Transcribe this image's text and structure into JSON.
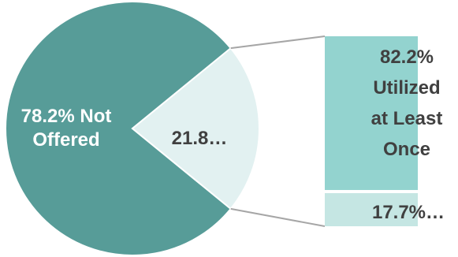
{
  "chart_data": {
    "type": "bar-of-pie",
    "pie": {
      "slices": [
        {
          "label": "78.2% Not Offered",
          "value": 78.2,
          "color": "#579c98",
          "text_color": "#ffffff"
        },
        {
          "label": "21.8…",
          "value": 21.8,
          "color": "#e2f1f1",
          "text_color": "#404040"
        }
      ]
    },
    "bar": {
      "segments": [
        {
          "label": "82.2% Utilized at Least Once",
          "value": 82.2,
          "color": "#93d3cf",
          "text_color": "#404040"
        },
        {
          "label": "17.7%…",
          "value": 17.7,
          "color": "#c5e6e3",
          "text_color": "#404040"
        }
      ]
    },
    "connector_color": "#a6a6a6"
  }
}
